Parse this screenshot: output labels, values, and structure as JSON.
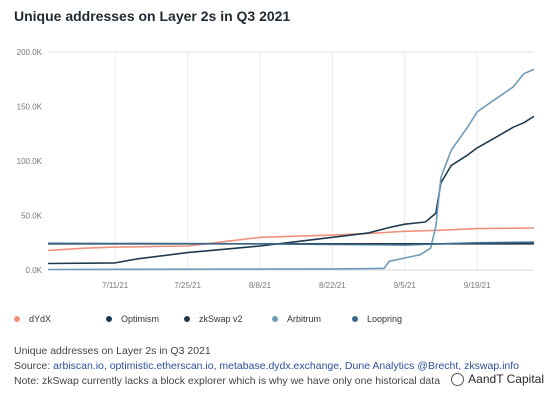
{
  "title": "Unique addresses on Layer 2s in Q3 2021",
  "chart_data": {
    "type": "line",
    "title": "Unique addresses on Layer 2s in Q3 2021",
    "xlabel": "",
    "ylabel": "",
    "ylim": [
      0,
      200000
    ],
    "yticks": [
      0,
      50000,
      100000,
      150000,
      200000
    ],
    "ytick_labels": [
      "0.0K",
      "50.0K",
      "100.0K",
      "150.0K",
      "200.0K"
    ],
    "xlim": [
      "2021-06-28",
      "2021-09-30"
    ],
    "xticks": [
      "2021-07-11",
      "2021-07-25",
      "2021-08-08",
      "2021-08-22",
      "2021-09-05",
      "2021-09-19"
    ],
    "xtick_labels": [
      "7/11/21",
      "7/25/21",
      "8/8/21",
      "8/22/21",
      "9/5/21",
      "9/19/21"
    ],
    "grid": "vertical",
    "legend_position": "bottom",
    "series": [
      {
        "name": "dYdX",
        "color": "#f0917e",
        "points": [
          [
            "2021-06-28",
            18000
          ],
          [
            "2021-07-05",
            20000
          ],
          [
            "2021-07-11",
            21000
          ],
          [
            "2021-07-25",
            22000
          ],
          [
            "2021-08-01",
            26000
          ],
          [
            "2021-08-08",
            30000
          ],
          [
            "2021-08-15",
            31000
          ],
          [
            "2021-08-22",
            32000
          ],
          [
            "2021-08-29",
            33500
          ],
          [
            "2021-09-05",
            35500
          ],
          [
            "2021-09-12",
            36500
          ],
          [
            "2021-09-19",
            38000
          ],
          [
            "2021-09-30",
            38500
          ]
        ]
      },
      {
        "name": "Optimism",
        "color": "#1e3a4f",
        "points": [
          [
            "2021-06-28",
            6000
          ],
          [
            "2021-07-11",
            6500
          ],
          [
            "2021-07-15",
            10000
          ],
          [
            "2021-07-25",
            16000
          ],
          [
            "2021-08-01",
            19000
          ],
          [
            "2021-08-08",
            22000
          ],
          [
            "2021-08-15",
            26000
          ],
          [
            "2021-08-22",
            30000
          ],
          [
            "2021-08-29",
            34000
          ],
          [
            "2021-09-02",
            39000
          ],
          [
            "2021-09-05",
            42000
          ],
          [
            "2021-09-09",
            44000
          ],
          [
            "2021-09-11",
            52000
          ],
          [
            "2021-09-12",
            80000
          ],
          [
            "2021-09-14",
            96000
          ],
          [
            "2021-09-17",
            105000
          ],
          [
            "2021-09-19",
            112000
          ],
          [
            "2021-09-22",
            120000
          ],
          [
            "2021-09-26",
            131000
          ],
          [
            "2021-09-28",
            135000
          ],
          [
            "2021-09-30",
            141000
          ]
        ]
      },
      {
        "name": "zkSwap v2",
        "color": "#22384c",
        "points": [
          [
            "2021-06-28",
            24000
          ],
          [
            "2021-09-30",
            24000
          ]
        ]
      },
      {
        "name": "Arbitrum",
        "color": "#6e9bb8",
        "points": [
          [
            "2021-06-28",
            500
          ],
          [
            "2021-08-22",
            1000
          ],
          [
            "2021-09-01",
            1500
          ],
          [
            "2021-09-02",
            8000
          ],
          [
            "2021-09-05",
            11000
          ],
          [
            "2021-09-08",
            14000
          ],
          [
            "2021-09-10",
            20000
          ],
          [
            "2021-09-11",
            40000
          ],
          [
            "2021-09-12",
            85000
          ],
          [
            "2021-09-14",
            110000
          ],
          [
            "2021-09-17",
            130000
          ],
          [
            "2021-09-19",
            145000
          ],
          [
            "2021-09-22",
            155000
          ],
          [
            "2021-09-26",
            168000
          ],
          [
            "2021-09-28",
            180000
          ],
          [
            "2021-09-30",
            184000
          ]
        ]
      },
      {
        "name": "Loopring",
        "color": "#3d6a8a",
        "points": [
          [
            "2021-06-28",
            24500
          ],
          [
            "2021-08-08",
            24000
          ],
          [
            "2021-08-22",
            23500
          ],
          [
            "2021-09-05",
            23000
          ],
          [
            "2021-09-12",
            24000
          ],
          [
            "2021-09-19",
            25000
          ],
          [
            "2021-09-30",
            25500
          ]
        ]
      }
    ]
  },
  "caption": {
    "line1": "Unique addresses on Layer 2s in Q3 2021",
    "source_label": "Source: ",
    "source_links": "arbiscan.io, optimistic.etherscan.io, metabase.dydx.exchange, Dune Analytics @Brecht, zkswap.info",
    "note": "Note: zkSwap currently lacks a block explorer which is why we have only one historical data"
  },
  "watermark": "AandT Capital"
}
